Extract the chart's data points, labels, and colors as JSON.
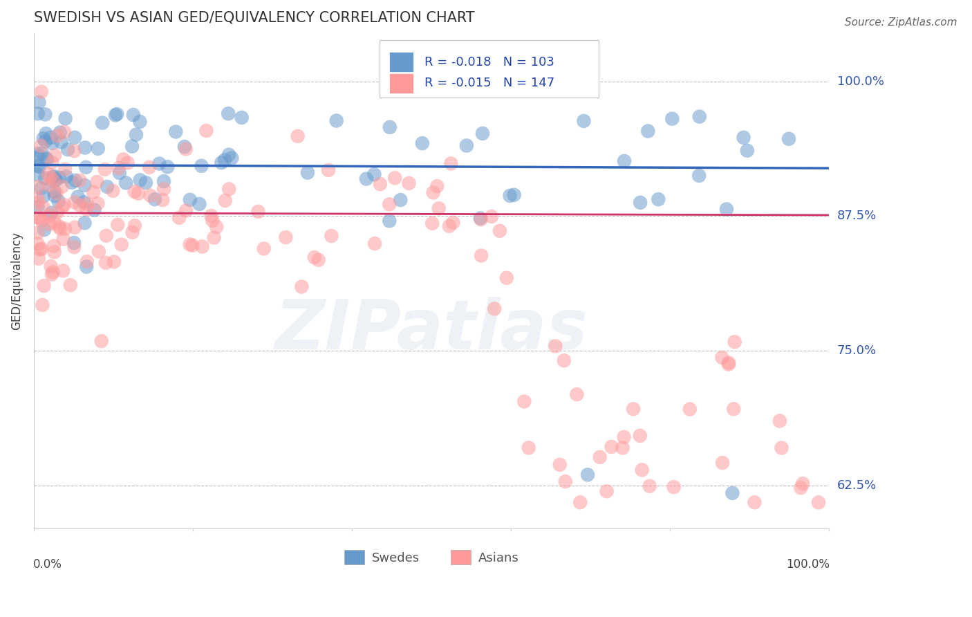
{
  "title": "SWEDISH VS ASIAN GED/EQUIVALENCY CORRELATION CHART",
  "source": "Source: ZipAtlas.com",
  "ylabel": "GED/Equivalency",
  "legend_label1": "Swedes",
  "legend_label2": "Asians",
  "r1": -0.018,
  "n1": 103,
  "r2": -0.015,
  "n2": 147,
  "color_blue": "#6699CC",
  "color_pink": "#FF9999",
  "line_color_blue": "#3366BB",
  "line_color_pink": "#CC3366",
  "ytick_vals": [
    0.625,
    0.75,
    0.875,
    1.0
  ],
  "ytick_labels": [
    "62.5%",
    "75.0%",
    "87.5%",
    "100.0%"
  ],
  "xlim": [
    0.0,
    1.0
  ],
  "ylim": [
    0.585,
    1.045
  ],
  "blue_line_intercept": 0.9225,
  "blue_line_slope": -0.003,
  "pink_line_intercept": 0.878,
  "pink_line_slope": -0.002,
  "watermark_text": "ZIPatlas",
  "title_fontsize": 15,
  "tick_label_fontsize": 13,
  "ylabel_fontsize": 12,
  "source_fontsize": 11
}
